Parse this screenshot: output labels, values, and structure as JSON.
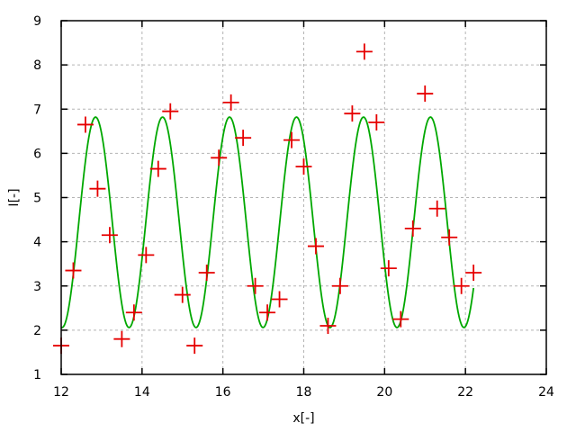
{
  "figure": {
    "background": "#ffffff",
    "border_color": "#000000"
  },
  "chart_data": {
    "type": "scatter",
    "title": "",
    "xlabel": "x[-]",
    "ylabel": "I[-]",
    "xlim": [
      12,
      24
    ],
    "ylim": [
      1,
      9
    ],
    "x_ticks": [
      12,
      14,
      16,
      18,
      20,
      22,
      24
    ],
    "y_ticks": [
      1,
      2,
      3,
      4,
      5,
      6,
      7,
      8,
      9
    ],
    "grid": "dashed",
    "grid_color": "#b4b4b4",
    "legend": "none",
    "series": [
      {
        "name": "data-points",
        "type": "scatter",
        "marker": "plus",
        "color": "#e60000",
        "points": [
          [
            12.0,
            1.65
          ],
          [
            12.3,
            3.35
          ],
          [
            12.6,
            6.65
          ],
          [
            12.9,
            5.2
          ],
          [
            13.2,
            4.15
          ],
          [
            13.5,
            1.8
          ],
          [
            13.8,
            2.4
          ],
          [
            14.1,
            3.7
          ],
          [
            14.4,
            5.65
          ],
          [
            14.7,
            6.95
          ],
          [
            15.0,
            2.8
          ],
          [
            15.3,
            1.65
          ],
          [
            15.6,
            3.3
          ],
          [
            15.9,
            5.9
          ],
          [
            16.2,
            7.15
          ],
          [
            16.5,
            6.35
          ],
          [
            16.8,
            3.0
          ],
          [
            17.1,
            2.4
          ],
          [
            17.4,
            2.7
          ],
          [
            17.7,
            6.3
          ],
          [
            18.0,
            5.7
          ],
          [
            18.3,
            3.9
          ],
          [
            18.6,
            2.1
          ],
          [
            18.9,
            3.0
          ],
          [
            19.2,
            6.9
          ],
          [
            19.5,
            8.3
          ],
          [
            19.8,
            6.7
          ],
          [
            20.1,
            3.4
          ],
          [
            20.4,
            2.25
          ],
          [
            20.7,
            4.3
          ],
          [
            21.0,
            7.35
          ],
          [
            21.3,
            4.75
          ],
          [
            21.6,
            4.1
          ],
          [
            21.9,
            3.0
          ],
          [
            22.2,
            3.3
          ]
        ]
      },
      {
        "name": "fit-curve",
        "type": "line",
        "color": "#00a800",
        "model": "baseline + amplitude * cos(2*pi*(x - peak_x)/period)",
        "baseline": 4.44,
        "amplitude": 2.38,
        "period": 1.657,
        "peak_x": 12.85,
        "x_start": 12.0,
        "x_end": 22.2
      }
    ]
  }
}
